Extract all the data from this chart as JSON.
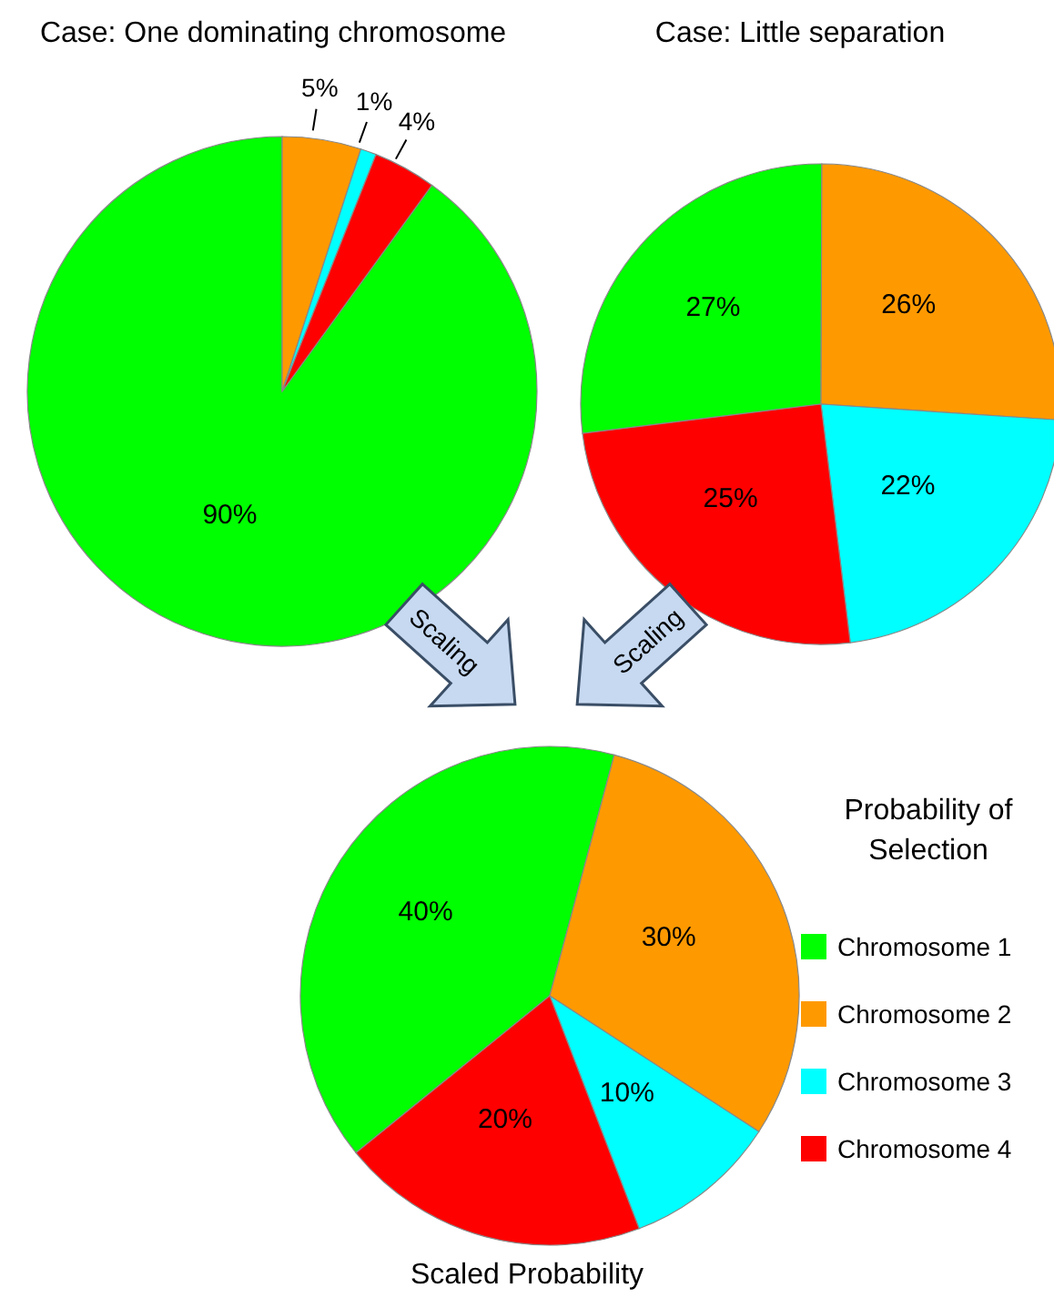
{
  "chart_data": [
    {
      "type": "pie",
      "title": "Case: One dominating chromosome",
      "categories": [
        null,
        null,
        null,
        null
      ],
      "values": [
        90,
        5,
        1,
        4
      ],
      "colors": [
        "#00ff00",
        "#ff9900",
        "#00ffff",
        "#ff0000"
      ],
      "value_labels": [
        "90%",
        "5%",
        "1%",
        "4%"
      ],
      "legend": false
    },
    {
      "type": "pie",
      "title": "Case: Little separation",
      "categories": [
        null,
        null,
        null,
        null
      ],
      "values": [
        27,
        26,
        22,
        25
      ],
      "colors": [
        "#00ff00",
        "#ff9900",
        "#00ffff",
        "#ff0000"
      ],
      "value_labels": [
        "27%",
        "26%",
        "22%",
        "25%"
      ],
      "legend": false
    },
    {
      "type": "pie",
      "title": "Scaled Probability",
      "categories": [
        "Chromosome 1",
        "Chromosome 2",
        "Chromosome 3",
        "Chromosome 4"
      ],
      "values": [
        40,
        30,
        10,
        20
      ],
      "colors": [
        "#00ff00",
        "#ff9900",
        "#00ffff",
        "#ff0000"
      ],
      "value_labels": [
        "40%",
        "30%",
        "10%",
        "20%"
      ],
      "legend": "right",
      "legend_title": "Probability of Selection",
      "annotations": [
        "Scaling",
        "Scaling"
      ]
    }
  ]
}
